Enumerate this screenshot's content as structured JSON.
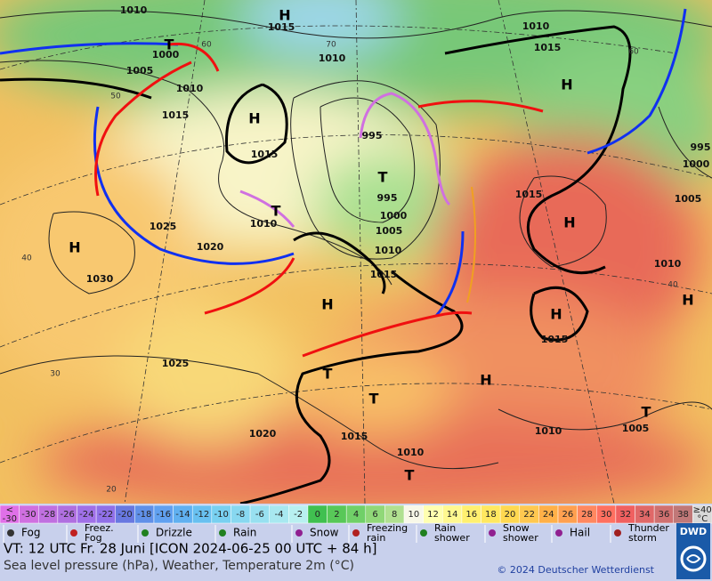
{
  "map": {
    "pressure_labels": [
      "1010",
      "1015",
      "1010",
      "1015",
      "1000",
      "1005",
      "1010",
      "1010",
      "1015",
      "1015",
      "995",
      "995",
      "1000",
      "1005",
      "1010",
      "1010",
      "1015",
      "1025",
      "1020",
      "1030",
      "1025",
      "1020",
      "1015",
      "1010",
      "1015",
      "1010",
      "1015",
      "1010",
      "1005",
      "995",
      "1000",
      "1005"
    ],
    "centers": [
      "H",
      "T",
      "H",
      "T",
      "T",
      "H",
      "H",
      "H",
      "H",
      "H",
      "T",
      "T",
      "H",
      "T",
      "T",
      "H"
    ],
    "latitudes": [
      "60",
      "50",
      "40",
      "30",
      "20",
      "60",
      "40",
      "70"
    ]
  },
  "scale": {
    "low_prefix": "<",
    "labels": [
      "-30",
      "-30",
      "-28",
      "-26",
      "-24",
      "-22",
      "-20",
      "-18",
      "-16",
      "-14",
      "-12",
      "-10",
      "-8",
      "-6",
      "-4",
      "-2",
      "0",
      "2",
      "4",
      "6",
      "8",
      "10",
      "12",
      "14",
      "16",
      "18",
      "20",
      "22",
      "24",
      "26",
      "28",
      "30",
      "32",
      "34",
      "36",
      "38",
      "≥40"
    ],
    "colors": [
      "#e070e8",
      "#d070e0",
      "#c070e0",
      "#b070e0",
      "#a070e8",
      "#9070e8",
      "#6878e0",
      "#6090e8",
      "#60a0f0",
      "#60b0f0",
      "#68c0f0",
      "#78d0f0",
      "#88d8f0",
      "#98e0f0",
      "#a8e8f0",
      "#b8f0f0",
      "#40c050",
      "#58c858",
      "#70d068",
      "#90d878",
      "#b0e090",
      "#f8f8e8",
      "#ffffb0",
      "#fff890",
      "#fff070",
      "#ffe860",
      "#ffd850",
      "#ffc850",
      "#ffb048",
      "#ffa050",
      "#ff8860",
      "#ff7060",
      "#f06060",
      "#e06868",
      "#d07070",
      "#c07878",
      "#d8d8d8"
    ],
    "unit": "°C"
  },
  "legend": [
    "Fog",
    "Freez. Fog",
    "Drizzle",
    "Rain",
    "Snow",
    "Freezing rain",
    "Rain shower",
    "Snow shower",
    "Hail",
    "Thunder storm"
  ],
  "footer": {
    "valid_time": "VT: 12 UTC Fr.  28 Juni [ICON 2024-06-25  00 UTC + 84 h]",
    "description": "Sea level pressure (hPa), Weather, Temperature 2m (°C)",
    "copyright": "© 2024 Deutscher Wetterdienst",
    "logo": "DWD"
  }
}
